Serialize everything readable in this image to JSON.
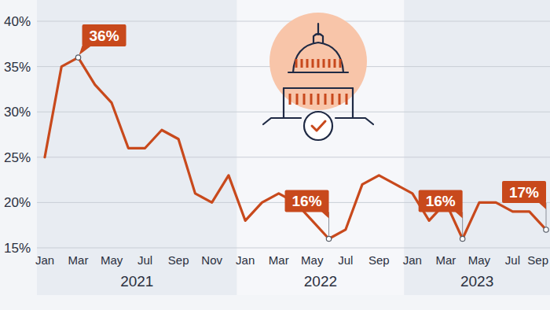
{
  "chart_data": {
    "type": "line",
    "color": "#c8491c",
    "grid": true,
    "categories": [
      "Jan",
      null,
      "Mar",
      null,
      "May",
      null,
      "Jul",
      null,
      "Sep",
      null,
      "Nov",
      null,
      "Jan",
      null,
      "Mar",
      null,
      "May",
      null,
      "Jul",
      null,
      "Sep",
      null,
      "Jan",
      null,
      "Mar",
      null,
      "May",
      null,
      "Jul",
      null,
      "Sep"
    ],
    "groups": [
      {
        "label": "2021",
        "count": 12
      },
      {
        "label": "2022",
        "count": 10
      },
      {
        "label": "2023",
        "count": 9
      }
    ],
    "values": [
      25,
      35,
      36,
      33,
      31,
      26,
      26,
      28,
      27,
      21,
      20,
      23,
      18,
      20,
      21,
      20,
      18,
      16,
      17,
      22,
      23,
      22,
      21,
      18,
      20,
      16,
      20,
      20,
      19,
      19,
      17
    ],
    "value_labels": [
      null,
      null,
      "36%",
      null,
      null,
      null,
      null,
      null,
      null,
      null,
      null,
      null,
      null,
      null,
      null,
      null,
      null,
      "16%",
      null,
      null,
      null,
      null,
      null,
      null,
      null,
      "16%",
      null,
      null,
      null,
      null,
      "17%"
    ],
    "ylim": [
      15,
      40
    ],
    "yticks": [
      {
        "value": 15,
        "label": "15%"
      },
      {
        "value": 20,
        "label": "20%"
      },
      {
        "value": 25,
        "label": "25%"
      },
      {
        "value": 30,
        "label": "30%"
      },
      {
        "value": 35,
        "label": "35%"
      },
      {
        "value": 40,
        "label": "40%"
      }
    ]
  }
}
